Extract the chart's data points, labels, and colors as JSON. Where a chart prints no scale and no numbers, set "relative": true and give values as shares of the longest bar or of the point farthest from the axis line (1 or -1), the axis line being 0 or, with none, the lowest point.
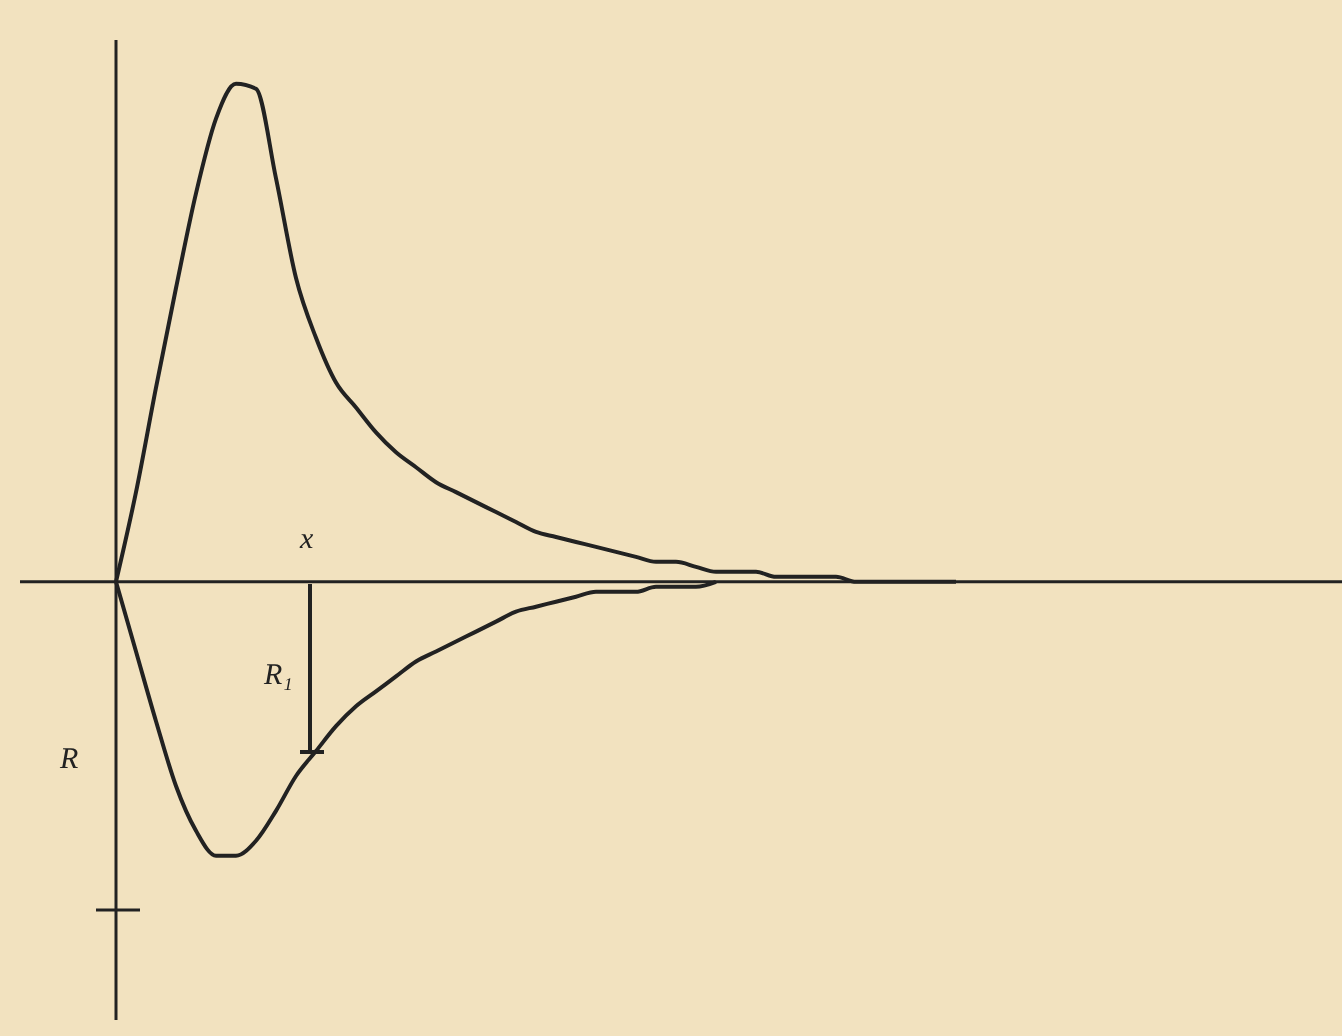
{
  "chart_data": {
    "type": "line",
    "relative": true,
    "categories": [
      null,
      null,
      null,
      null,
      null,
      null,
      null,
      null,
      null,
      null,
      null,
      null,
      null,
      null,
      null,
      null,
      null,
      null,
      null,
      null,
      null,
      null,
      null,
      null,
      null,
      null,
      null,
      null,
      null,
      null,
      null,
      null,
      null,
      null,
      null,
      null,
      null,
      null,
      null,
      null,
      null,
      null,
      null
    ],
    "series": [
      {
        "color": "#222222",
        "values": [
          0,
          0.18,
          0.39,
          0.59,
          0.78,
          0.93,
          1,
          0.99,
          0.81,
          0.61,
          0.49,
          0.4,
          0.35,
          0.3,
          0.26,
          0.23,
          0.2,
          0.18,
          0.16,
          0.14,
          0.12,
          0.1,
          0.09,
          0.08,
          0.07,
          0.06,
          0.05,
          0.04,
          0.04,
          0.03,
          0.02,
          0.02,
          0.02,
          0.01,
          0.01,
          0.01,
          0.01,
          0,
          0,
          0,
          0,
          0,
          0
        ]
      },
      {
        "color": "#222222",
        "values": [
          0,
          -0.14,
          -0.28,
          -0.41,
          -0.5,
          -0.55,
          -0.55,
          -0.52,
          -0.46,
          -0.39,
          -0.34,
          -0.29,
          -0.25,
          -0.22,
          -0.19,
          -0.16,
          -0.14,
          -0.12,
          -0.1,
          -0.08,
          -0.06,
          -0.05,
          -0.04,
          -0.03,
          -0.02,
          -0.02,
          -0.02,
          -0.01,
          -0.01,
          -0.01,
          0,
          null,
          null,
          null,
          null,
          null,
          null,
          null,
          null,
          null,
          null,
          null,
          null
        ]
      }
    ],
    "annotations": [
      "x",
      "R₁",
      "R"
    ]
  }
}
